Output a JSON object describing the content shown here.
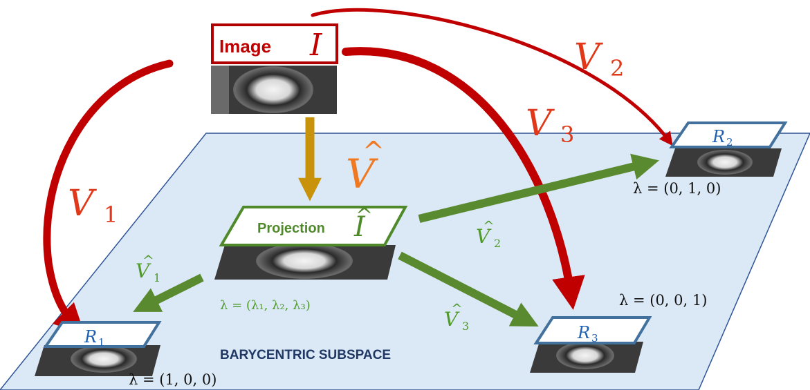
{
  "subspace_label": "BARYCENTRIC SUBSPACE",
  "image_node": {
    "label": "Image",
    "symbol": "I"
  },
  "projection_node": {
    "label": "Projection",
    "symbol": "I",
    "hat": "^"
  },
  "projection_lambda": "λ = (λ₁, λ₂, λ₃)",
  "references": [
    {
      "id": "R1",
      "symbol": "R",
      "sub": "1",
      "lambda": "λ = (1, 0, 0)"
    },
    {
      "id": "R2",
      "symbol": "R",
      "sub": "2",
      "lambda": "λ = (0, 1, 0)"
    },
    {
      "id": "R3",
      "symbol": "R",
      "sub": "3",
      "lambda": "λ = (0, 0, 1)"
    }
  ],
  "deformations": {
    "V1": {
      "symbol": "V",
      "sub": "1"
    },
    "V2": {
      "symbol": "V",
      "sub": "2"
    },
    "V3": {
      "symbol": "V",
      "sub": "3"
    },
    "Vhat": {
      "symbol": "V",
      "hat": "^"
    },
    "Vhat1": {
      "symbol": "V",
      "sub": "1",
      "hat": "^"
    },
    "Vhat2": {
      "symbol": "V",
      "sub": "2",
      "hat": "^"
    },
    "Vhat3": {
      "symbol": "V",
      "sub": "3",
      "hat": "^"
    }
  },
  "colors": {
    "plane_fill": "#dbe8f5",
    "plane_stroke": "#2f5597",
    "red_arrow": "#c00000",
    "green_arrow": "#5a8a30",
    "gold_arrow": "#c8930a",
    "orange_text": "#f07820",
    "green_text": "#4f9a2a",
    "ref_blue": "#2060b0",
    "subspace_text": "#1f3864"
  }
}
